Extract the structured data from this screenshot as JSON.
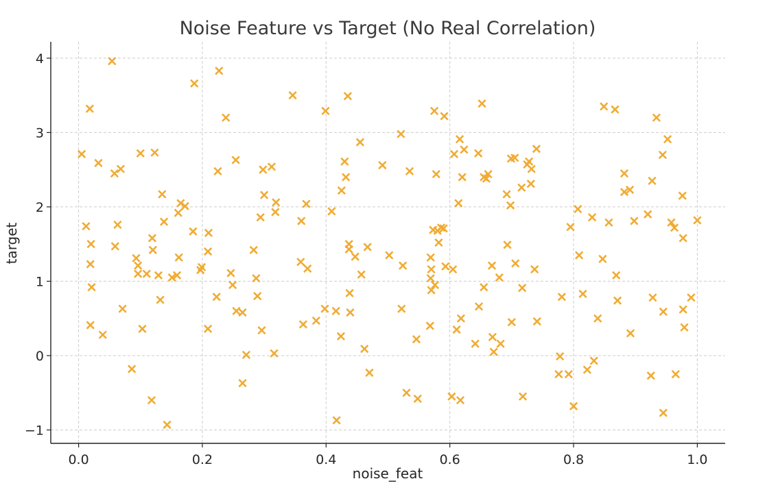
{
  "chart_data": {
    "type": "scatter",
    "title": "Noise Feature vs Target (No Real Correlation)",
    "xlabel": "noise_feat",
    "ylabel": "target",
    "xlim": [
      -0.045,
      1.045
    ],
    "ylim": [
      -1.18,
      4.22
    ],
    "x_ticks": [
      0.0,
      0.2,
      0.4,
      0.6,
      0.8,
      1.0
    ],
    "x_tick_labels": [
      "0.0",
      "0.2",
      "0.4",
      "0.6",
      "0.8",
      "1.0"
    ],
    "y_ticks": [
      -1,
      0,
      1,
      2,
      3,
      4
    ],
    "y_tick_labels": [
      "−1",
      "0",
      "1",
      "2",
      "3",
      "4"
    ],
    "grid": true,
    "marker": "x",
    "color": "#f0ab33",
    "points": [
      [
        0.005,
        2.71
      ],
      [
        0.012,
        1.74
      ],
      [
        0.018,
        3.32
      ],
      [
        0.019,
        0.41
      ],
      [
        0.019,
        1.23
      ],
      [
        0.02,
        1.5
      ],
      [
        0.021,
        0.92
      ],
      [
        0.032,
        2.59
      ],
      [
        0.039,
        0.28
      ],
      [
        0.054,
        3.96
      ],
      [
        0.058,
        2.45
      ],
      [
        0.059,
        1.47
      ],
      [
        0.063,
        1.76
      ],
      [
        0.068,
        2.51
      ],
      [
        0.071,
        0.63
      ],
      [
        0.086,
        -0.18
      ],
      [
        0.093,
        1.31
      ],
      [
        0.096,
        1.21
      ],
      [
        0.096,
        1.1
      ],
      [
        0.1,
        2.72
      ],
      [
        0.103,
        0.36
      ],
      [
        0.11,
        1.1
      ],
      [
        0.118,
        -0.6
      ],
      [
        0.119,
        1.58
      ],
      [
        0.12,
        1.42
      ],
      [
        0.123,
        2.73
      ],
      [
        0.129,
        1.08
      ],
      [
        0.132,
        0.75
      ],
      [
        0.135,
        2.17
      ],
      [
        0.138,
        1.8
      ],
      [
        0.143,
        -0.93
      ],
      [
        0.151,
        1.05
      ],
      [
        0.159,
        1.08
      ],
      [
        0.161,
        1.92
      ],
      [
        0.162,
        1.32
      ],
      [
        0.165,
        2.05
      ],
      [
        0.172,
        2.01
      ],
      [
        0.185,
        1.67
      ],
      [
        0.187,
        3.66
      ],
      [
        0.197,
        1.15
      ],
      [
        0.199,
        1.19
      ],
      [
        0.209,
        0.36
      ],
      [
        0.209,
        1.4
      ],
      [
        0.21,
        1.65
      ],
      [
        0.223,
        0.79
      ],
      [
        0.225,
        2.48
      ],
      [
        0.227,
        3.83
      ],
      [
        0.238,
        3.2
      ],
      [
        0.246,
        1.11
      ],
      [
        0.249,
        0.95
      ],
      [
        0.254,
        2.63
      ],
      [
        0.255,
        0.6
      ],
      [
        0.265,
        0.58
      ],
      [
        0.265,
        -0.37
      ],
      [
        0.271,
        0.01
      ],
      [
        0.283,
        1.42
      ],
      [
        0.287,
        1.04
      ],
      [
        0.289,
        0.8
      ],
      [
        0.294,
        1.86
      ],
      [
        0.296,
        0.34
      ],
      [
        0.298,
        2.5
      ],
      [
        0.3,
        2.16
      ],
      [
        0.312,
        2.54
      ],
      [
        0.316,
        0.03
      ],
      [
        0.318,
        1.93
      ],
      [
        0.319,
        2.06
      ],
      [
        0.346,
        3.5
      ],
      [
        0.359,
        1.26
      ],
      [
        0.36,
        1.81
      ],
      [
        0.363,
        0.42
      ],
      [
        0.368,
        2.04
      ],
      [
        0.37,
        1.17
      ],
      [
        0.384,
        0.47
      ],
      [
        0.398,
        0.63
      ],
      [
        0.399,
        3.29
      ],
      [
        0.409,
        1.94
      ],
      [
        0.416,
        0.6
      ],
      [
        0.417,
        -0.87
      ],
      [
        0.424,
        0.26
      ],
      [
        0.425,
        2.22
      ],
      [
        0.43,
        2.61
      ],
      [
        0.432,
        2.4
      ],
      [
        0.435,
        3.49
      ],
      [
        0.437,
        1.5
      ],
      [
        0.437,
        1.43
      ],
      [
        0.438,
        0.84
      ],
      [
        0.439,
        0.58
      ],
      [
        0.447,
        1.33
      ],
      [
        0.455,
        2.87
      ],
      [
        0.457,
        1.09
      ],
      [
        0.462,
        0.09
      ],
      [
        0.467,
        1.46
      ],
      [
        0.47,
        -0.23
      ],
      [
        0.491,
        2.56
      ],
      [
        0.502,
        1.35
      ],
      [
        0.521,
        2.98
      ],
      [
        0.522,
        0.63
      ],
      [
        0.524,
        1.21
      ],
      [
        0.53,
        -0.5
      ],
      [
        0.535,
        2.48
      ],
      [
        0.546,
        0.22
      ],
      [
        0.548,
        -0.58
      ],
      [
        0.568,
        0.4
      ],
      [
        0.569,
        1.32
      ],
      [
        0.569,
        1.04
      ],
      [
        0.57,
        0.88
      ],
      [
        0.57,
        1.16
      ],
      [
        0.573,
        1.69
      ],
      [
        0.575,
        3.29
      ],
      [
        0.576,
        0.95
      ],
      [
        0.578,
        2.44
      ],
      [
        0.58,
        1.68
      ],
      [
        0.582,
        1.52
      ],
      [
        0.586,
        1.72
      ],
      [
        0.59,
        1.71
      ],
      [
        0.591,
        3.22
      ],
      [
        0.593,
        1.2
      ],
      [
        0.603,
        -0.55
      ],
      [
        0.605,
        1.16
      ],
      [
        0.607,
        2.71
      ],
      [
        0.611,
        0.35
      ],
      [
        0.614,
        2.05
      ],
      [
        0.616,
        2.91
      ],
      [
        0.617,
        -0.6
      ],
      [
        0.618,
        0.5
      ],
      [
        0.62,
        2.4
      ],
      [
        0.623,
        2.77
      ],
      [
        0.641,
        0.16
      ],
      [
        0.646,
        2.72
      ],
      [
        0.647,
        0.66
      ],
      [
        0.652,
        3.39
      ],
      [
        0.655,
        2.4
      ],
      [
        0.655,
        0.92
      ],
      [
        0.659,
        2.38
      ],
      [
        0.662,
        2.44
      ],
      [
        0.668,
        1.21
      ],
      [
        0.669,
        0.25
      ],
      [
        0.671,
        0.05
      ],
      [
        0.68,
        1.05
      ],
      [
        0.682,
        0.16
      ],
      [
        0.692,
        2.17
      ],
      [
        0.693,
        1.49
      ],
      [
        0.698,
        2.02
      ],
      [
        0.699,
        2.65
      ],
      [
        0.7,
        0.45
      ],
      [
        0.705,
        2.66
      ],
      [
        0.706,
        1.24
      ],
      [
        0.716,
        2.26
      ],
      [
        0.717,
        0.91
      ],
      [
        0.718,
        -0.55
      ],
      [
        0.725,
        2.57
      ],
      [
        0.728,
        2.61
      ],
      [
        0.731,
        2.31
      ],
      [
        0.732,
        2.51
      ],
      [
        0.737,
        1.16
      ],
      [
        0.74,
        2.78
      ],
      [
        0.741,
        0.46
      ],
      [
        0.776,
        -0.25
      ],
      [
        0.778,
        -0.01
      ],
      [
        0.781,
        0.79
      ],
      [
        0.792,
        -0.25
      ],
      [
        0.795,
        1.73
      ],
      [
        0.8,
        -0.68
      ],
      [
        0.807,
        1.97
      ],
      [
        0.809,
        1.35
      ],
      [
        0.815,
        0.83
      ],
      [
        0.822,
        -0.19
      ],
      [
        0.83,
        1.86
      ],
      [
        0.833,
        -0.07
      ],
      [
        0.839,
        0.5
      ],
      [
        0.847,
        1.3
      ],
      [
        0.849,
        3.35
      ],
      [
        0.857,
        1.79
      ],
      [
        0.867,
        3.31
      ],
      [
        0.869,
        1.08
      ],
      [
        0.871,
        0.74
      ],
      [
        0.882,
        2.2
      ],
      [
        0.882,
        2.45
      ],
      [
        0.891,
        2.23
      ],
      [
        0.892,
        0.3
      ],
      [
        0.898,
        1.81
      ],
      [
        0.92,
        1.9
      ],
      [
        0.925,
        -0.27
      ],
      [
        0.927,
        2.35
      ],
      [
        0.928,
        0.78
      ],
      [
        0.934,
        3.2
      ],
      [
        0.944,
        2.7
      ],
      [
        0.945,
        0.59
      ],
      [
        0.945,
        -0.77
      ],
      [
        0.952,
        2.91
      ],
      [
        0.958,
        1.79
      ],
      [
        0.963,
        1.72
      ],
      [
        0.965,
        -0.25
      ],
      [
        0.976,
        2.15
      ],
      [
        0.977,
        1.58
      ],
      [
        0.977,
        0.62
      ],
      [
        0.979,
        0.38
      ],
      [
        0.99,
        0.78
      ],
      [
        1.0,
        1.82
      ]
    ]
  }
}
